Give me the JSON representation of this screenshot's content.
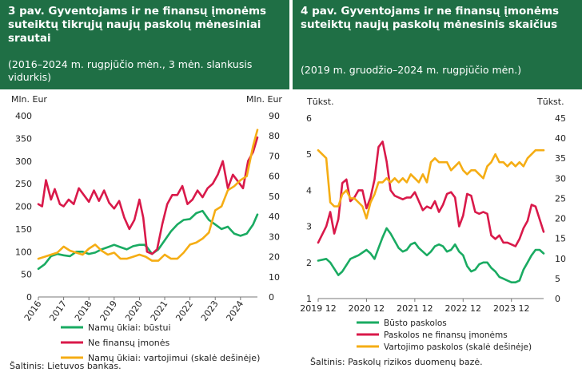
{
  "chart_data": [
    {
      "type": "line",
      "title": "3 pav. Gyventojams ir ne finansų įmonėms suteiktų tikrųjų naujų paskolų mėnesiniai srautai",
      "subtitle": "(2016–2024 m. rugpjūčio mėn., 3 mėn. slankusis vidurkis)",
      "ylabel_left": "Mln. Eur",
      "ylabel_right": "Mln. Eur",
      "ylim_left": [
        0,
        400
      ],
      "ylim_right": [
        0,
        90
      ],
      "yticks_left": [
        "0",
        "50",
        "100",
        "150",
        "200",
        "250",
        "300",
        "350",
        "400"
      ],
      "yticks_right": [
        "0",
        "10",
        "20",
        "30",
        "40",
        "50",
        "60",
        "70",
        "80",
        "90"
      ],
      "xlim": [
        2016,
        2024.67
      ],
      "xticks": [
        "2016",
        "2017",
        "2018",
        "2019",
        "2020",
        "2021",
        "2022",
        "2023",
        "2024"
      ],
      "series": [
        {
          "name": "Namų ūkiai: būstui",
          "axis": "left",
          "color": "#1aab62",
          "x": [
            2016,
            2016.25,
            2016.5,
            2016.75,
            2017,
            2017.25,
            2017.5,
            2017.75,
            2018,
            2018.25,
            2018.5,
            2018.75,
            2019,
            2019.25,
            2019.5,
            2019.75,
            2020,
            2020.2,
            2020.3,
            2020.5,
            2020.75,
            2021,
            2021.25,
            2021.5,
            2021.75,
            2022,
            2022.25,
            2022.5,
            2022.75,
            2023,
            2023.25,
            2023.5,
            2023.75,
            2024,
            2024.25,
            2024.5,
            2024.67
          ],
          "values": [
            62,
            72,
            90,
            95,
            92,
            90,
            100,
            100,
            95,
            98,
            105,
            110,
            115,
            110,
            105,
            112,
            115,
            115,
            110,
            95,
            105,
            125,
            145,
            160,
            170,
            172,
            185,
            190,
            170,
            160,
            150,
            155,
            140,
            135,
            140,
            160,
            182
          ]
        },
        {
          "name": "Ne finansų įmonės",
          "axis": "left",
          "color": "#d9194a",
          "x": [
            2016,
            2016.15,
            2016.3,
            2016.5,
            2016.65,
            2016.85,
            2017,
            2017.2,
            2017.4,
            2017.6,
            2017.8,
            2018,
            2018.2,
            2018.4,
            2018.6,
            2018.8,
            2019,
            2019.2,
            2019.4,
            2019.6,
            2019.8,
            2020,
            2020.15,
            2020.3,
            2020.5,
            2020.7,
            2020.9,
            2021.1,
            2021.3,
            2021.5,
            2021.7,
            2021.9,
            2022.1,
            2022.3,
            2022.5,
            2022.7,
            2022.9,
            2023.1,
            2023.3,
            2023.5,
            2023.7,
            2023.9,
            2024.1,
            2024.3,
            2024.5,
            2024.67
          ],
          "values": [
            205,
            200,
            258,
            215,
            238,
            205,
            200,
            215,
            205,
            240,
            225,
            210,
            235,
            212,
            235,
            208,
            195,
            212,
            175,
            150,
            170,
            215,
            175,
            100,
            95,
            105,
            160,
            205,
            225,
            225,
            245,
            205,
            215,
            235,
            220,
            240,
            250,
            270,
            300,
            240,
            270,
            255,
            240,
            300,
            320,
            352
          ]
        },
        {
          "name": "Namų ūkiai: vartojimui (skalė dešinėje)",
          "axis": "right",
          "color": "#f5ad14",
          "x": [
            2016,
            2016.25,
            2016.5,
            2016.75,
            2017,
            2017.25,
            2017.5,
            2017.75,
            2018,
            2018.25,
            2018.5,
            2018.75,
            2019,
            2019.25,
            2019.5,
            2019.75,
            2020,
            2020.25,
            2020.5,
            2020.75,
            2021,
            2021.25,
            2021.5,
            2021.75,
            2022,
            2022.25,
            2022.5,
            2022.75,
            2023,
            2023.25,
            2023.5,
            2023.75,
            2024,
            2024.25,
            2024.5,
            2024.67
          ],
          "values": [
            19,
            20,
            21,
            22,
            25,
            23,
            22,
            21,
            24,
            26,
            23,
            21,
            22,
            19,
            19,
            20,
            21,
            20,
            18,
            18,
            21,
            19,
            19,
            22,
            26,
            27,
            29,
            32,
            43,
            45,
            53,
            55,
            58,
            60,
            75,
            83
          ]
        }
      ],
      "source": "Šaltinis: Lietuvos bankas."
    },
    {
      "type": "line",
      "title": "4 pav. Gyventojams ir ne finansų įmonėms suteiktų naujų paskolų mėnesinis skaičius",
      "subtitle": "(2019 m. gruodžio–2024 m. rugpjūčio mėn.)",
      "ylabel_left": "Tūkst.",
      "ylabel_right": "Tūkst.",
      "ylim_left": [
        1,
        6
      ],
      "ylim_right": [
        0,
        45
      ],
      "yticks_left": [
        "1",
        "2",
        "3",
        "4",
        "5",
        "6"
      ],
      "yticks_right": [
        "0",
        "5",
        "10",
        "15",
        "20",
        "25",
        "30",
        "35",
        "40",
        "45"
      ],
      "xlim": [
        0,
        56
      ],
      "xticks": [
        "2019 12",
        "2020 12",
        "2021 12",
        "2022 12",
        "2023 12"
      ],
      "xtick_pos": [
        0,
        12,
        24,
        36,
        48
      ],
      "series": [
        {
          "name": "Būsto paskolos",
          "axis": "left",
          "color": "#1aab62",
          "x": [
            0,
            2,
            3,
            5,
            6,
            8,
            9,
            10,
            12,
            13,
            14,
            15,
            16,
            17,
            18,
            19,
            20,
            21,
            22,
            23,
            24,
            25,
            26,
            27,
            28,
            29,
            30,
            31,
            32,
            33,
            34,
            35,
            36,
            37,
            38,
            39,
            40,
            41,
            42,
            43,
            44,
            45,
            46,
            47,
            48,
            49,
            50,
            51,
            52,
            53,
            54,
            55,
            56
          ],
          "values": [
            2.05,
            2.1,
            2.0,
            1.65,
            1.75,
            2.1,
            2.15,
            2.2,
            2.35,
            2.25,
            2.1,
            2.4,
            2.7,
            2.95,
            2.8,
            2.6,
            2.4,
            2.3,
            2.35,
            2.5,
            2.55,
            2.4,
            2.3,
            2.2,
            2.3,
            2.45,
            2.5,
            2.45,
            2.3,
            2.35,
            2.5,
            2.3,
            2.2,
            1.9,
            1.75,
            1.8,
            1.95,
            2.0,
            2.0,
            1.85,
            1.75,
            1.6,
            1.55,
            1.5,
            1.45,
            1.45,
            1.5,
            1.8,
            2.0,
            2.2,
            2.35,
            2.35,
            2.25
          ]
        },
        {
          "name": "Paskolos ne finansų įmonėms",
          "axis": "left",
          "color": "#d9194a",
          "x": [
            0,
            2,
            3,
            4,
            5,
            6,
            7,
            8,
            9,
            10,
            11,
            12,
            13,
            14,
            15,
            16,
            17,
            18,
            19,
            20,
            21,
            22,
            23,
            24,
            25,
            26,
            27,
            28,
            29,
            30,
            31,
            32,
            33,
            34,
            35,
            36,
            37,
            38,
            39,
            40,
            41,
            42,
            43,
            44,
            45,
            46,
            47,
            48,
            49,
            50,
            51,
            52,
            53,
            54,
            55,
            56
          ],
          "values": [
            2.55,
            3.0,
            3.4,
            2.8,
            3.2,
            4.2,
            4.3,
            3.7,
            3.8,
            4.0,
            4.0,
            3.5,
            3.8,
            4.3,
            5.2,
            5.35,
            4.8,
            4.0,
            3.85,
            3.8,
            3.75,
            3.8,
            3.8,
            3.95,
            3.7,
            3.45,
            3.55,
            3.5,
            3.7,
            3.4,
            3.6,
            3.9,
            3.95,
            3.8,
            3.0,
            3.3,
            3.9,
            3.85,
            3.4,
            3.35,
            3.4,
            3.35,
            2.75,
            2.65,
            2.75,
            2.55,
            2.55,
            2.5,
            2.45,
            2.65,
            2.95,
            3.15,
            3.6,
            3.55,
            3.2,
            2.85
          ]
        },
        {
          "name": "Vartojimo paskolos (skalė dešinėje)",
          "axis": "right",
          "color": "#f5ad14",
          "x": [
            0,
            2,
            3,
            4,
            5,
            6,
            7,
            8,
            9,
            10,
            11,
            12,
            13,
            14,
            15,
            16,
            17,
            18,
            19,
            20,
            21,
            22,
            23,
            24,
            25,
            26,
            27,
            28,
            29,
            30,
            31,
            32,
            33,
            34,
            35,
            36,
            37,
            38,
            39,
            40,
            41,
            42,
            43,
            44,
            45,
            46,
            47,
            48,
            49,
            50,
            51,
            52,
            53,
            54,
            55,
            56
          ],
          "values": [
            37,
            35,
            24,
            23,
            23,
            26,
            27,
            25,
            25,
            24,
            23,
            20,
            24,
            26,
            29,
            29,
            30,
            29,
            30,
            29,
            30,
            29,
            31,
            30,
            29,
            31,
            29,
            34,
            35,
            34,
            34,
            34,
            32,
            33,
            34,
            32,
            31,
            32,
            32,
            31,
            30,
            33,
            34,
            36,
            34,
            34,
            33,
            34,
            33,
            34,
            33,
            35,
            36,
            37,
            37,
            37
          ]
        }
      ],
      "source": "Šaltinis: Paskolų rizikos duomenų bazė."
    }
  ]
}
